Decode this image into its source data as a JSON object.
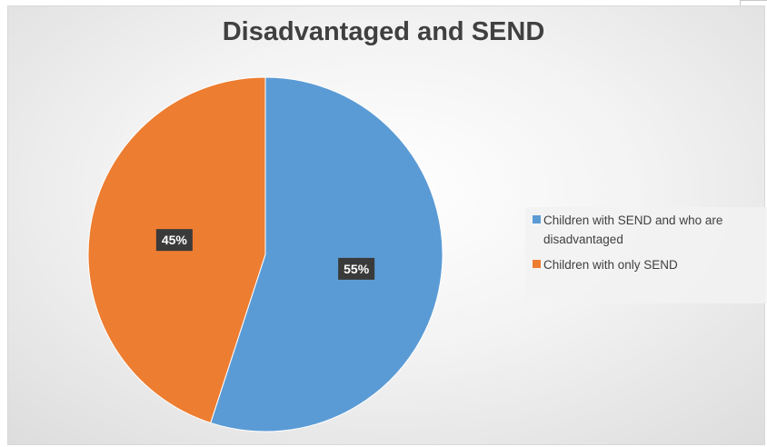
{
  "chart_data": {
    "type": "pie",
    "title": "Disadvantaged and SEND",
    "legend_position": "right",
    "slices": [
      {
        "label": "Children with SEND and who are disadvantaged",
        "value": 55,
        "value_label": "55%",
        "color": "#5b9bd5"
      },
      {
        "label": "Children with only SEND",
        "value": 45,
        "value_label": "45%",
        "color": "#ed7d31"
      }
    ]
  }
}
